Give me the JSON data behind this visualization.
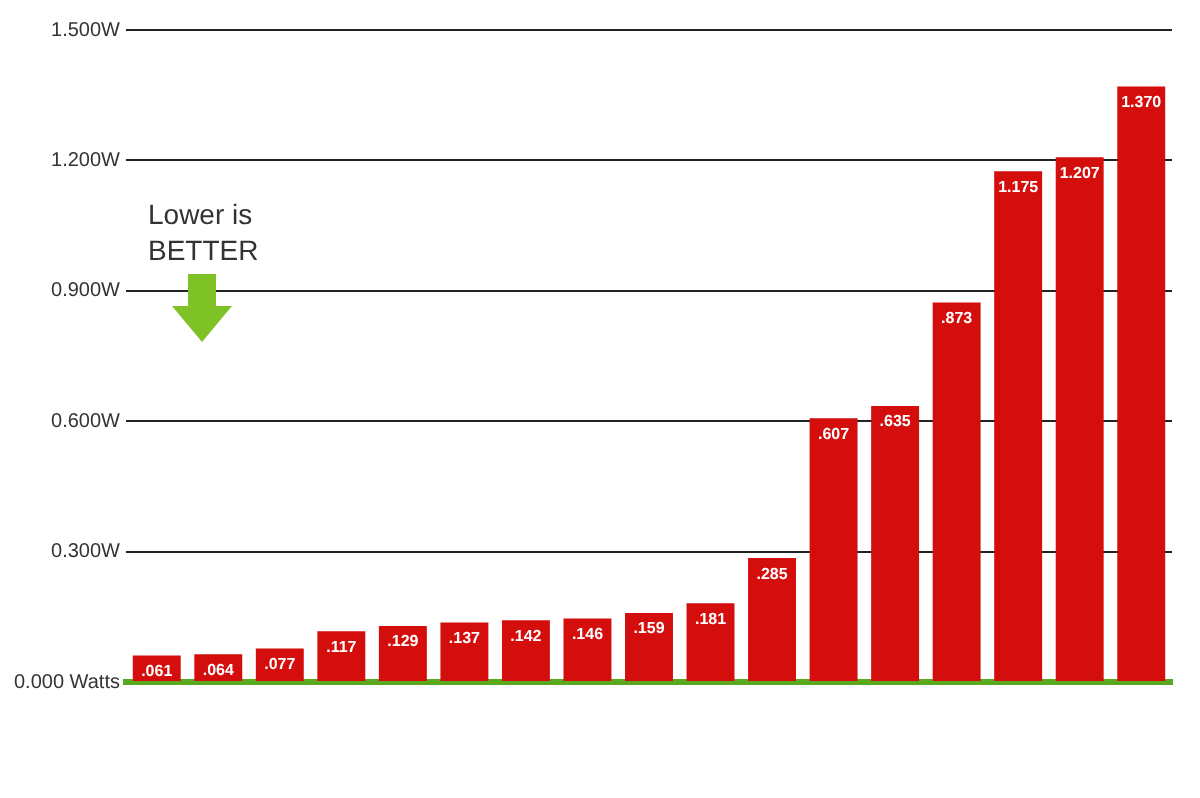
{
  "chart_data": {
    "type": "bar",
    "categories": [
      null,
      null,
      null,
      null,
      null,
      null,
      null,
      null,
      null,
      null,
      null,
      null,
      null,
      null,
      null,
      null,
      null
    ],
    "values": [
      0.061,
      0.064,
      0.077,
      0.117,
      0.129,
      0.137,
      0.142,
      0.146,
      0.159,
      0.181,
      0.285,
      0.607,
      0.635,
      0.873,
      1.175,
      1.207,
      1.37
    ],
    "value_labels": [
      ".061",
      ".064",
      ".077",
      ".117",
      ".129",
      ".137",
      ".142",
      ".146",
      ".159",
      ".181",
      ".285",
      ".607",
      ".635",
      ".873",
      "1.175",
      "1.207",
      "1.370"
    ],
    "color": "#d40d0d",
    "ylim": [
      0,
      1.5
    ],
    "yticks": [
      {
        "value": 0,
        "label": "0.000 Watts"
      },
      {
        "value": 0.3,
        "label": "0.300W"
      },
      {
        "value": 0.6,
        "label": "0.600W"
      },
      {
        "value": 0.9,
        "label": "0.900W"
      },
      {
        "value": 1.2,
        "label": "1.200W"
      },
      {
        "value": 1.5,
        "label": "1.500W"
      }
    ],
    "grid": "y",
    "annotations": [
      "Lower is\nBETTER"
    ]
  }
}
